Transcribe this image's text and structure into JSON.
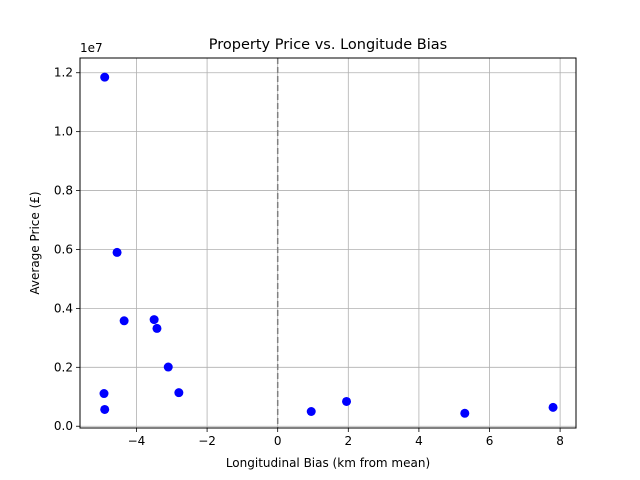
{
  "chart_data": {
    "type": "scatter",
    "title": "Property Price vs. Longitude Bias",
    "xlabel": "Longitudinal Bias (km from mean)",
    "ylabel": "Average Price (£)",
    "y_offset_label": "1e7",
    "xlim": [
      -5.6,
      8.45
    ],
    "ylim": [
      -0.06,
      12.5
    ],
    "y_scale_note": "values in units of 1e7",
    "xticks": [
      -4,
      -2,
      0,
      2,
      4,
      6,
      8
    ],
    "xtick_labels": [
      "−4",
      "−2",
      "0",
      "2",
      "4",
      "6",
      "8"
    ],
    "yticks": [
      0.0,
      0.2,
      0.4,
      0.6,
      0.8,
      1.0,
      1.2
    ],
    "ytick_labels": [
      "0.0",
      "0.2",
      "0.4",
      "0.6",
      "0.8",
      "1.0",
      "1.2"
    ],
    "grid": true,
    "reference_line": {
      "x": 0,
      "style": "dashed",
      "color": "#808080"
    },
    "marker_color": "#0000ff",
    "points": [
      {
        "x": -4.9,
        "y": 11.85
      },
      {
        "x": -4.55,
        "y": 5.9
      },
      {
        "x": -4.35,
        "y": 3.58
      },
      {
        "x": -3.5,
        "y": 3.62
      },
      {
        "x": -3.42,
        "y": 3.32
      },
      {
        "x": -3.1,
        "y": 2.01
      },
      {
        "x": -2.8,
        "y": 1.14
      },
      {
        "x": -4.92,
        "y": 1.11
      },
      {
        "x": -4.9,
        "y": 0.57
      },
      {
        "x": 0.95,
        "y": 0.5
      },
      {
        "x": 1.95,
        "y": 0.84
      },
      {
        "x": 5.3,
        "y": 0.44
      },
      {
        "x": 7.8,
        "y": 0.64
      }
    ]
  }
}
